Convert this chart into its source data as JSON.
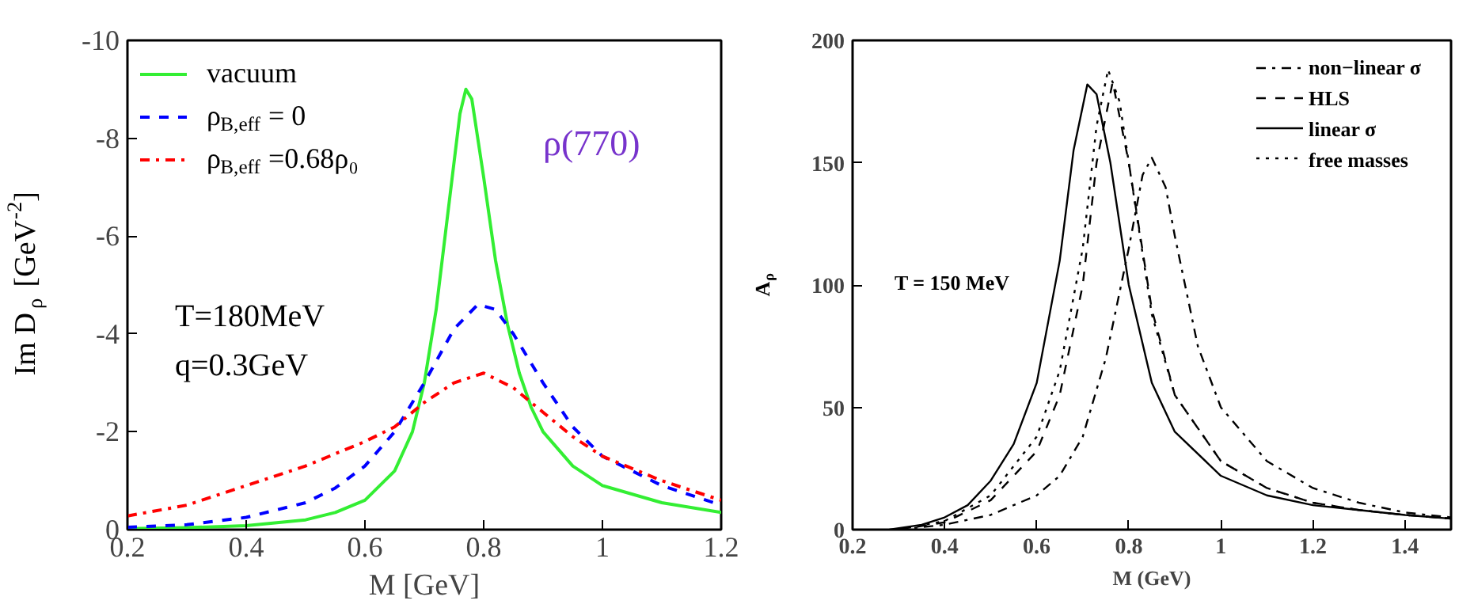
{
  "chart_data": [
    {
      "type": "line",
      "xlabel": "M [GeV]",
      "ylabel": "Im D$_{ρ}$ [GeV$^{-2}$]",
      "xlim": [
        0.2,
        1.2
      ],
      "ylim": [
        0,
        -10
      ],
      "xticks": [
        0.2,
        0.4,
        0.6,
        0.8,
        1,
        1.2
      ],
      "yticks": [
        0,
        -2,
        -4,
        -6,
        -8,
        -10
      ],
      "grid": false,
      "legend": "top left",
      "annotations": [
        "ρ(770)",
        "T=180MeV",
        "q=0.3GeV"
      ],
      "x": [
        0.2,
        0.3,
        0.4,
        0.5,
        0.55,
        0.6,
        0.65,
        0.68,
        0.7,
        0.72,
        0.74,
        0.76,
        0.77,
        0.78,
        0.8,
        0.82,
        0.84,
        0.86,
        0.88,
        0.9,
        0.95,
        1.0,
        1.1,
        1.2
      ],
      "series": [
        {
          "name": "vacuum",
          "color": "#33ee33",
          "line_style": "solid",
          "values": [
            -0.02,
            -0.04,
            -0.08,
            -0.2,
            -0.35,
            -0.6,
            -1.2,
            -2.0,
            -3.0,
            -4.5,
            -6.5,
            -8.5,
            -9.0,
            -8.8,
            -7.2,
            -5.5,
            -4.2,
            -3.2,
            -2.5,
            -2.0,
            -1.3,
            -0.9,
            -0.55,
            -0.35
          ]
        },
        {
          "name": "ρ$_{B,eff}$= 0",
          "color": "#0000ff",
          "line_style": "dashed",
          "x": [
            0.2,
            0.3,
            0.4,
            0.5,
            0.55,
            0.6,
            0.65,
            0.7,
            0.75,
            0.79,
            0.82,
            0.85,
            0.9,
            0.95,
            1.0,
            1.1,
            1.2
          ],
          "values": [
            -0.05,
            -0.1,
            -0.25,
            -0.55,
            -0.85,
            -1.3,
            -2.0,
            -3.0,
            -4.1,
            -4.6,
            -4.5,
            -4.0,
            -3.0,
            -2.1,
            -1.5,
            -0.9,
            -0.5
          ]
        },
        {
          "name": "ρ$_{B,eff}$=0.68ρ₀",
          "color": "#ff0000",
          "line_style": "dashdot",
          "x": [
            0.2,
            0.3,
            0.4,
            0.5,
            0.6,
            0.65,
            0.7,
            0.75,
            0.8,
            0.85,
            0.9,
            0.95,
            1.0,
            1.1,
            1.2
          ],
          "values": [
            -0.28,
            -0.5,
            -0.9,
            -1.3,
            -1.8,
            -2.1,
            -2.6,
            -3.0,
            -3.2,
            -2.9,
            -2.4,
            -1.9,
            -1.5,
            -1.0,
            -0.6
          ]
        }
      ]
    },
    {
      "type": "line",
      "xlabel": "M (GeV)",
      "ylabel": "A$_{ρ}$",
      "xlim": [
        0.2,
        1.5
      ],
      "ylim": [
        0,
        200
      ],
      "xticks": [
        0.2,
        0.4,
        0.6,
        0.8,
        1,
        1.2,
        1.4
      ],
      "yticks": [
        0,
        50,
        100,
        150,
        200
      ],
      "grid": false,
      "legend": "top right",
      "annotations": [
        "T = 150 MeV"
      ],
      "series": [
        {
          "name": "non−linear σ",
          "color": "#000000",
          "line_style": "dashdot",
          "x": [
            0.3,
            0.4,
            0.5,
            0.6,
            0.65,
            0.7,
            0.75,
            0.8,
            0.83,
            0.85,
            0.88,
            0.9,
            0.95,
            1.0,
            1.1,
            1.2,
            1.3,
            1.4,
            1.5
          ],
          "values": [
            0,
            2,
            6,
            14,
            22,
            38,
            70,
            115,
            145,
            152,
            140,
            120,
            75,
            50,
            28,
            17,
            11,
            7,
            5
          ]
        },
        {
          "name": "HLS",
          "color": "#000000",
          "line_style": "dashed",
          "x": [
            0.3,
            0.4,
            0.5,
            0.6,
            0.65,
            0.7,
            0.73,
            0.765,
            0.8,
            0.85,
            0.9,
            1.0,
            1.1,
            1.2,
            1.3,
            1.4,
            1.5
          ],
          "values": [
            0,
            3,
            12,
            32,
            55,
            100,
            150,
            183,
            150,
            90,
            55,
            28,
            17,
            11,
            8,
            6,
            4.5
          ]
        },
        {
          "name": "linear σ",
          "color": "#000000",
          "line_style": "solid",
          "x": [
            0.28,
            0.35,
            0.4,
            0.45,
            0.5,
            0.55,
            0.6,
            0.65,
            0.68,
            0.71,
            0.73,
            0.76,
            0.8,
            0.85,
            0.9,
            1.0,
            1.1,
            1.2,
            1.3,
            1.4,
            1.5
          ],
          "values": [
            0,
            2,
            5,
            10,
            20,
            35,
            60,
            110,
            155,
            182,
            178,
            150,
            100,
            60,
            40,
            22,
            14,
            10,
            8,
            6,
            4.5
          ]
        },
        {
          "name": "free masses",
          "color": "#000000",
          "line_style": "dotted",
          "x": [
            0.3,
            0.4,
            0.5,
            0.6,
            0.65,
            0.7,
            0.73,
            0.755,
            0.78,
            0.8,
            0.85,
            0.9,
            1.0,
            1.1,
            1.2,
            1.3,
            1.4,
            1.5
          ],
          "values": [
            0,
            3.5,
            14,
            38,
            65,
            115,
            165,
            188,
            175,
            150,
            88,
            55,
            28,
            17,
            11,
            8,
            6,
            4.5
          ]
        }
      ]
    }
  ]
}
